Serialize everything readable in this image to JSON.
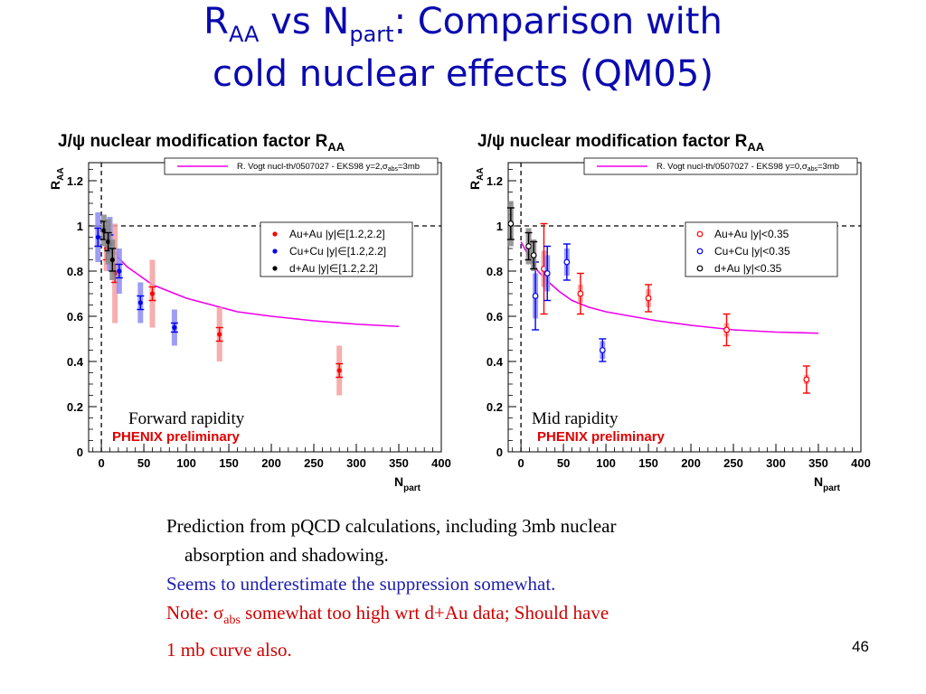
{
  "slide": {
    "title_line1_pre": "R",
    "title_line1_sub1": "AA",
    "title_line1_mid": " vs N",
    "title_line1_sub2": "part",
    "title_line1_post": ": Comparison with",
    "title_line2": "cold nuclear effects (QM05)",
    "page_number": "46"
  },
  "notes": {
    "line1": "Prediction from pQCD calculations, including 3mb nuclear",
    "line1b": "absorption and shadowing.",
    "line2": "Seems to underestimate the suppression somewhat.",
    "line3_pre": "Note: ",
    "line3_sym": "σ",
    "line3_sub": "abs",
    "line3_post": " somewhat too high wrt d+Au data; Should have",
    "line4": "1 mb curve also."
  },
  "chart_data": [
    {
      "type": "scatter",
      "title": "J/ψ nuclear modification factor R",
      "title_sub": "AA",
      "ylabel": "R",
      "ylabel_sub": "AA",
      "xlabel": "N",
      "xlabel_sub": "part",
      "xlim": [
        -15,
        400
      ],
      "ylim": [
        0,
        1.28
      ],
      "xticks": [
        "0",
        "50",
        "100",
        "150",
        "200",
        "250",
        "300",
        "350",
        "400"
      ],
      "xtick_values": [
        0,
        50,
        100,
        150,
        200,
        250,
        300,
        350,
        400
      ],
      "yticks": [
        "0",
        "0.2",
        "0.4",
        "0.6",
        "0.8",
        "1",
        "1.2"
      ],
      "ytick_values": [
        0,
        0.2,
        0.4,
        0.6,
        0.8,
        1,
        1.2
      ],
      "reference_lines": {
        "y": 1,
        "x": 0
      },
      "annotation": "Forward rapidity",
      "preliminary": "PHENIX preliminary",
      "model": {
        "label": "R. Vogt nucl-th/0507027 - EKS98 y=2,σ",
        "label_sub": "abs",
        "label_post": "=3mb",
        "color": "#ee00ee",
        "x": [
          0,
          10,
          20,
          30,
          45,
          60,
          80,
          100,
          130,
          160,
          200,
          250,
          300,
          350
        ],
        "y": [
          0.98,
          0.92,
          0.86,
          0.82,
          0.78,
          0.74,
          0.71,
          0.68,
          0.65,
          0.62,
          0.6,
          0.58,
          0.565,
          0.555
        ]
      },
      "legend_position": "top-right",
      "series": [
        {
          "name": "Au+Au |y|∈[1.2,2.2]",
          "color": "#ff0000",
          "marker": "filled",
          "x": [
            6,
            16,
            60,
            139,
            280
          ],
          "y": [
            0.9,
            0.79,
            0.7,
            0.52,
            0.36
          ],
          "stat": [
            0.05,
            0.04,
            0.03,
            0.03,
            0.03
          ],
          "sys": [
            0.1,
            0.22,
            0.15,
            0.12,
            0.11
          ]
        },
        {
          "name": "Cu+Cu |y|∈[1.2,2.2]",
          "color": "#0000ee",
          "marker": "filled",
          "x": [
            -4,
            10,
            21,
            46,
            86
          ],
          "y": [
            0.95,
            0.92,
            0.8,
            0.66,
            0.55
          ],
          "stat": [
            0.04,
            0.04,
            0.03,
            0.03,
            0.02
          ],
          "sys": [
            0.11,
            0.12,
            0.1,
            0.09,
            0.08
          ]
        },
        {
          "name": "d+Au |y|∈[1.2,2.2]",
          "color": "#000000",
          "marker": "filled",
          "x": [
            3,
            8,
            13
          ],
          "y": [
            0.98,
            0.93,
            0.85
          ],
          "stat": [
            0.04,
            0.04,
            0.05
          ],
          "sys": [
            0.07,
            0.1,
            0.09
          ]
        }
      ]
    },
    {
      "type": "scatter",
      "title": "J/ψ nuclear modification factor R",
      "title_sub": "AA",
      "ylabel": "R",
      "ylabel_sub": "AA",
      "xlabel": "N",
      "xlabel_sub": "part",
      "xlim": [
        -15,
        400
      ],
      "ylim": [
        0,
        1.28
      ],
      "xticks": [
        "0",
        "50",
        "100",
        "150",
        "200",
        "250",
        "300",
        "350",
        "400"
      ],
      "xtick_values": [
        0,
        50,
        100,
        150,
        200,
        250,
        300,
        350,
        400
      ],
      "yticks": [
        "0",
        "0.2",
        "0.4",
        "0.6",
        "0.8",
        "1",
        "1.2"
      ],
      "ytick_values": [
        0,
        0.2,
        0.4,
        0.6,
        0.8,
        1,
        1.2
      ],
      "reference_lines": {
        "y": 1,
        "x": 0
      },
      "annotation": "Mid rapidity",
      "preliminary": "PHENIX preliminary",
      "model": {
        "label": "R. Vogt nucl-th/0507027 - EKS98 y=0,σ",
        "label_sub": "abs",
        "label_post": "=3mb",
        "color": "#ee00ee",
        "x": [
          0,
          10,
          20,
          30,
          45,
          60,
          80,
          100,
          130,
          160,
          200,
          250,
          300,
          350
        ],
        "y": [
          0.93,
          0.86,
          0.8,
          0.76,
          0.71,
          0.67,
          0.64,
          0.62,
          0.6,
          0.58,
          0.56,
          0.54,
          0.53,
          0.525
        ]
      },
      "legend_position": "top-right",
      "series": [
        {
          "name": "Au+Au |y|<0.35",
          "color": "#ff0000",
          "marker": "open",
          "x": [
            27,
            70,
            150,
            242,
            336
          ],
          "y": [
            0.81,
            0.7,
            0.68,
            0.54,
            0.32
          ],
          "stat": [
            0.2,
            0.09,
            0.06,
            0.07,
            0.06
          ],
          "sys": [
            0.08,
            0.04,
            0.04,
            0.03,
            0.02
          ]
        },
        {
          "name": "Cu+Cu |y|<0.35",
          "color": "#0000ee",
          "marker": "open",
          "x": [
            17,
            31,
            54,
            96
          ],
          "y": [
            0.69,
            0.79,
            0.84,
            0.45
          ],
          "stat": [
            0.15,
            0.12,
            0.08,
            0.05
          ],
          "sys": [
            0.1,
            0.08,
            0.06,
            0.04
          ]
        },
        {
          "name": "d+Au |y|<0.35",
          "color": "#000000",
          "marker": "open",
          "x": [
            -12,
            9,
            15
          ],
          "y": [
            1.01,
            0.91,
            0.87
          ],
          "stat": [
            0.07,
            0.06,
            0.06
          ],
          "sys": [
            0.1,
            0.08,
            0.07
          ]
        }
      ]
    }
  ]
}
